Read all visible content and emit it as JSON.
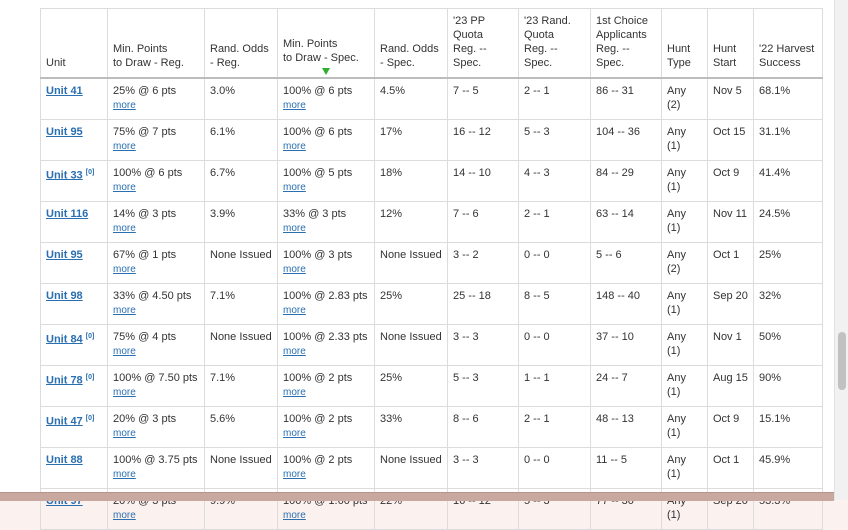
{
  "headers": [
    "Unit",
    "Min. Points\nto Draw - Reg.",
    "Rand. Odds\n- Reg.",
    "Min. Points\nto Draw - Spec.",
    "Rand. Odds\n- Spec.",
    "'23 PP\nQuota\nReg. -- Spec.",
    "'23 Rand.\nQuota\nReg. -- Spec.",
    "1st Choice\nApplicants\nReg. -- Spec.",
    "Hunt\nType",
    "Hunt\nStart",
    "'22 Harvest\nSuccess"
  ],
  "more_label": "more",
  "rows": [
    {
      "unit": "Unit 41",
      "note": "",
      "min_reg": "25% @ 6 pts",
      "odds_reg": "3.0%",
      "min_spec": "100% @ 6 pts",
      "odds_spec": "4.5%",
      "pp_quota": "7 -- 5",
      "rand_quota": "2 -- 1",
      "applicants": "86 -- 31",
      "hunt_type": "Any (2)",
      "hunt_start": "Nov 5",
      "harvest": "68.1%"
    },
    {
      "unit": "Unit 95",
      "note": "",
      "min_reg": "75% @ 7 pts",
      "odds_reg": "6.1%",
      "min_spec": "100% @ 6 pts",
      "odds_spec": "17%",
      "pp_quota": "16 -- 12",
      "rand_quota": "5 -- 3",
      "applicants": "104 -- 36",
      "hunt_type": "Any (1)",
      "hunt_start": "Oct 15",
      "harvest": "31.1%"
    },
    {
      "unit": "Unit 33",
      "note": "[0]",
      "min_reg": "100% @ 6 pts",
      "odds_reg": "6.7%",
      "min_spec": "100% @ 5 pts",
      "odds_spec": "18%",
      "pp_quota": "14 -- 10",
      "rand_quota": "4 -- 3",
      "applicants": "84 -- 29",
      "hunt_type": "Any (1)",
      "hunt_start": "Oct 9",
      "harvest": "41.4%"
    },
    {
      "unit": "Unit 116",
      "note": "",
      "min_reg": "14% @ 3 pts",
      "odds_reg": "3.9%",
      "min_spec": "33% @ 3 pts",
      "odds_spec": "12%",
      "pp_quota": "7 -- 6",
      "rand_quota": "2 -- 1",
      "applicants": "63 -- 14",
      "hunt_type": "Any (1)",
      "hunt_start": "Nov 11",
      "harvest": "24.5%"
    },
    {
      "unit": "Unit 95",
      "note": "",
      "min_reg": "67% @ 1 pts",
      "odds_reg": "None Issued",
      "min_spec": "100% @ 3 pts",
      "odds_spec": "None Issued",
      "pp_quota": "3 -- 2",
      "rand_quota": "0 -- 0",
      "applicants": "5 -- 6",
      "hunt_type": "Any (2)",
      "hunt_start": "Oct 1",
      "harvest": "25%"
    },
    {
      "unit": "Unit 98",
      "note": "",
      "min_reg": "33% @ 4.50 pts",
      "odds_reg": "7.1%",
      "min_spec": "100% @ 2.83 pts",
      "odds_spec": "25%",
      "pp_quota": "25 -- 18",
      "rand_quota": "8 -- 5",
      "applicants": "148 -- 40",
      "hunt_type": "Any (1)",
      "hunt_start": "Sep 20",
      "harvest": "32%"
    },
    {
      "unit": "Unit 84",
      "note": "[0]",
      "min_reg": "75% @ 4 pts",
      "odds_reg": "None Issued",
      "min_spec": "100% @ 2.33 pts",
      "odds_spec": "None Issued",
      "pp_quota": "3 -- 3",
      "rand_quota": "0 -- 0",
      "applicants": "37 -- 10",
      "hunt_type": "Any (1)",
      "hunt_start": "Nov 1",
      "harvest": "50%"
    },
    {
      "unit": "Unit 78",
      "note": "[0]",
      "min_reg": "100% @ 7.50 pts",
      "odds_reg": "7.1%",
      "min_spec": "100% @ 2 pts",
      "odds_spec": "25%",
      "pp_quota": "5 -- 3",
      "rand_quota": "1 -- 1",
      "applicants": "24 -- 7",
      "hunt_type": "Any (1)",
      "hunt_start": "Aug 15",
      "harvest": "90%"
    },
    {
      "unit": "Unit 47",
      "note": "[0]",
      "min_reg": "20% @ 3 pts",
      "odds_reg": "5.6%",
      "min_spec": "100% @ 2 pts",
      "odds_spec": "33%",
      "pp_quota": "8 -- 6",
      "rand_quota": "2 -- 1",
      "applicants": "48 -- 13",
      "hunt_type": "Any (1)",
      "hunt_start": "Oct 9",
      "harvest": "15.1%"
    },
    {
      "unit": "Unit 88",
      "note": "",
      "min_reg": "100% @ 3.75 pts",
      "odds_reg": "None Issued",
      "min_spec": "100% @ 2 pts",
      "odds_spec": "None Issued",
      "pp_quota": "3 -- 3",
      "rand_quota": "0 -- 0",
      "applicants": "11 -- 5",
      "hunt_type": "Any (1)",
      "hunt_start": "Oct 1",
      "harvest": "45.9%"
    },
    {
      "unit": "Unit 97",
      "note": "",
      "min_reg": "20% @ 3 pts",
      "odds_reg": "9.9%",
      "min_spec": "100% @ 1.60 pts",
      "odds_spec": "22%",
      "pp_quota": "16 -- 12",
      "rand_quota": "5 -- 3",
      "applicants": "77 -- 30",
      "hunt_type": "Any (1)",
      "hunt_start": "Sep 20",
      "harvest": "53.3%"
    }
  ]
}
